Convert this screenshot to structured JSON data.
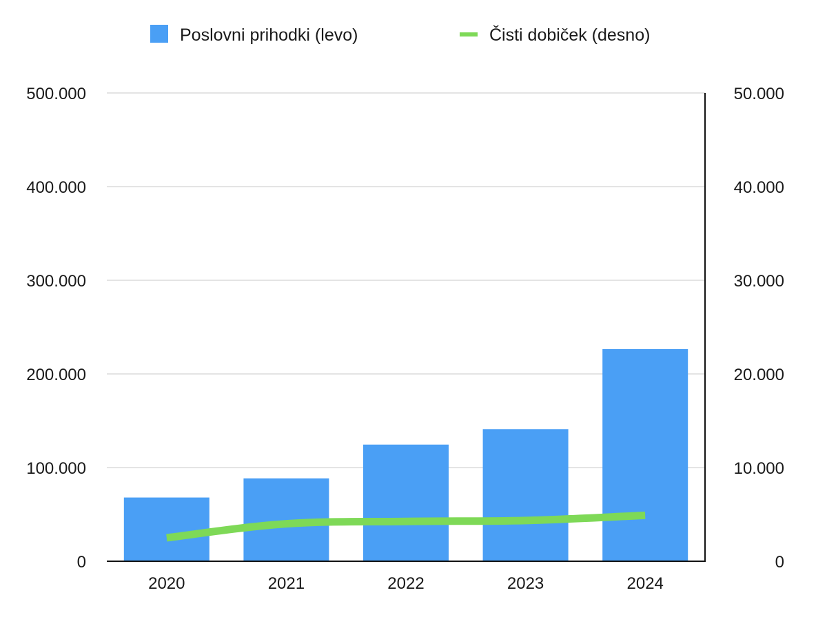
{
  "legend": {
    "bar_label": "Poslovni prihodki (levo)",
    "line_label": "Čisti dobiček (desno)"
  },
  "colors": {
    "bar": "#4a9ff5",
    "line": "#7ed957",
    "grid": "#c8c8c8",
    "axis": "#111111"
  },
  "chart_data": {
    "type": "bar",
    "categories": [
      "2020",
      "2021",
      "2022",
      "2023",
      "2024"
    ],
    "series": [
      {
        "name": "Poslovni prihodki (levo)",
        "type": "bar",
        "axis": "left",
        "values": [
          68000,
          88500,
          124500,
          141000,
          226500
        ]
      },
      {
        "name": "Čisti dobiček (desno)",
        "type": "line",
        "axis": "right",
        "values": [
          2500,
          4000,
          4250,
          4350,
          4900
        ]
      }
    ],
    "y_left": {
      "ylim": [
        0,
        500000
      ],
      "ticks": [
        0,
        100000,
        200000,
        300000,
        400000,
        500000
      ],
      "tick_labels": [
        "0",
        "100.000",
        "200.000",
        "300.000",
        "400.000",
        "500.000"
      ]
    },
    "y_right": {
      "ylim": [
        0,
        50000
      ],
      "ticks": [
        0,
        10000,
        20000,
        30000,
        40000,
        50000
      ],
      "tick_labels": [
        "0",
        "10.000",
        "20.000",
        "30.000",
        "40.000",
        "50.000"
      ]
    },
    "grid": true,
    "legend_position": "top"
  }
}
